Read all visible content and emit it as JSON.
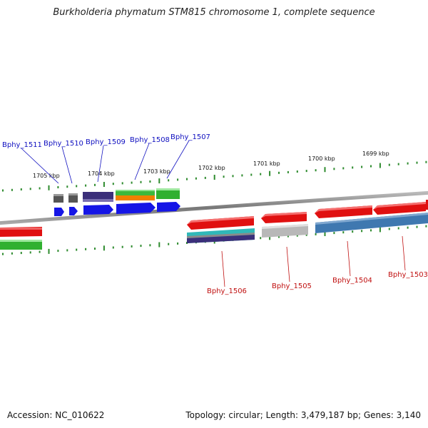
{
  "title": "Burkholderia phymatum STM815 chromosome 1, complete sequence",
  "footer": {
    "accession": "Accession: NC_010622",
    "topology": "Topology: circular; Length: 3,479,187 bp; Genes: 3,140"
  },
  "scale_labels": [
    "1705 kbp",
    "1704 kbp",
    "1703 kbp",
    "1702 kbp",
    "1701 kbp",
    "1700 kbp",
    "1699 kbp"
  ],
  "genes_forward": [
    "Bphy_1511",
    "Bphy_1510",
    "Bphy_1509",
    "Bphy_1508",
    "Bphy_1507"
  ],
  "genes_reverse": [
    "Bphy_1506",
    "Bphy_1505",
    "Bphy_1504",
    "Bphy_1503"
  ],
  "colors": {
    "forward_label": "#1010c0",
    "reverse_label": "#c01010",
    "tick": "#2e8b2e",
    "backbone": "#888888"
  }
}
